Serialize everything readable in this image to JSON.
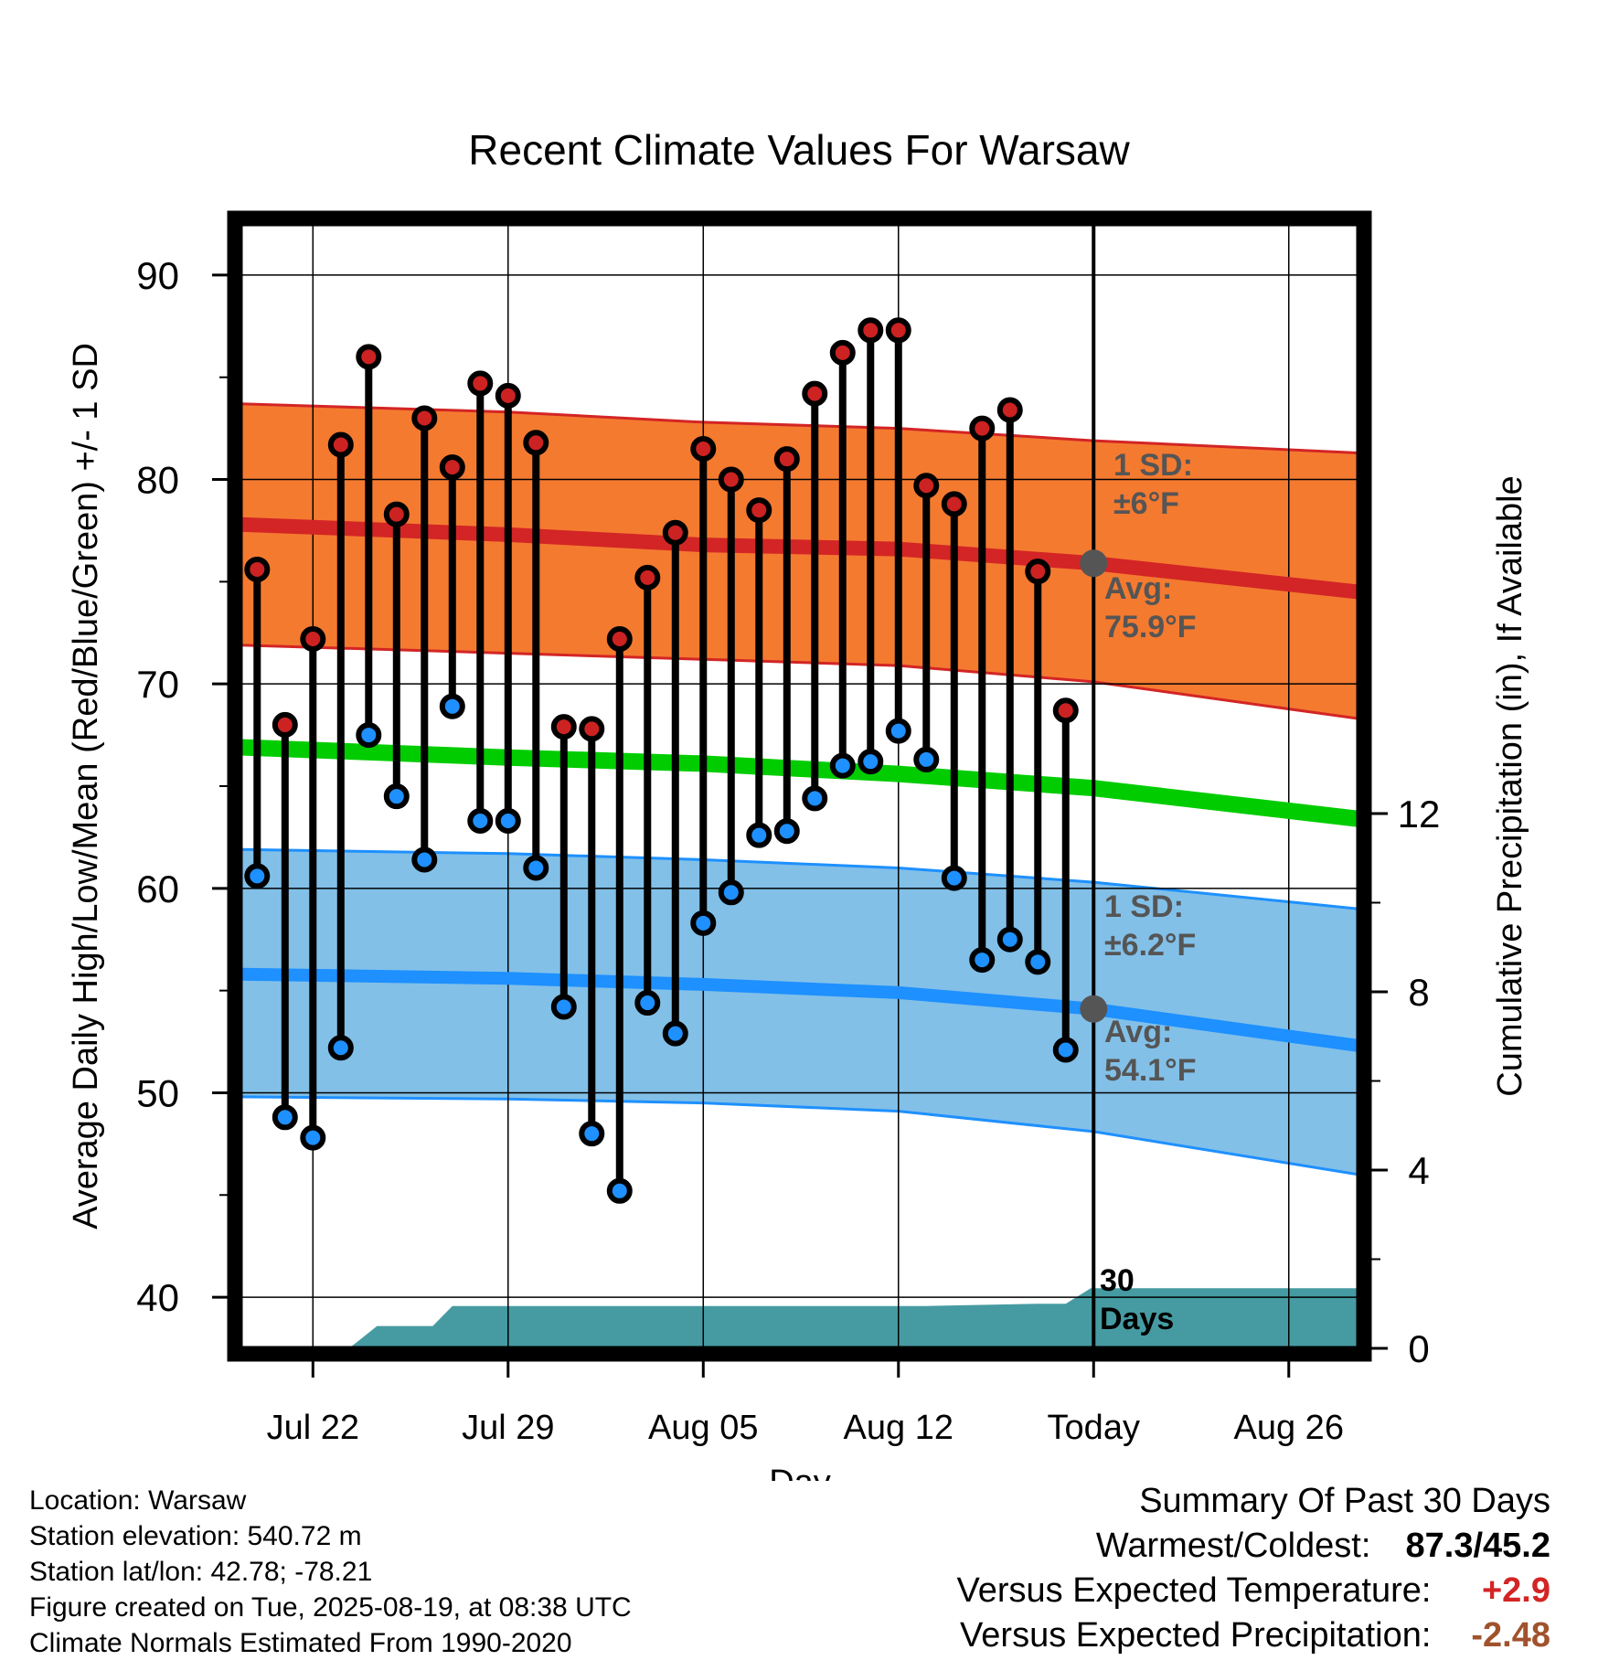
{
  "chart_data": {
    "type": "line",
    "title": "Recent Climate Values For Warsaw",
    "xlabel": "Day",
    "ylabel": "Average Daily High/Low/Mean (Red/Blue/Green) +/- 1 SD",
    "y2label": "Cumulative Precipitation (in), If Available",
    "ylim": [
      37.5,
      92.5
    ],
    "y2lim": [
      0,
      20
    ],
    "y_ticks": [
      "40",
      "50",
      "60",
      "70",
      "80",
      "90"
    ],
    "y2_ticks": [
      "0",
      "4",
      "8",
      "12"
    ],
    "y2_tick_values": [
      0,
      4,
      8,
      12
    ],
    "x_ticks": [
      "Jul 22",
      "Jul 29",
      "Aug 05",
      "Aug 12",
      "Today",
      "Aug 26"
    ],
    "x_tick_days": [
      0,
      7,
      14,
      21,
      28,
      35
    ],
    "xlim": [
      -2.6,
      37.5
    ],
    "grid": true,
    "days": [
      -2,
      -1,
      0,
      1,
      2,
      3,
      4,
      5,
      6,
      7,
      8,
      9,
      10,
      11,
      12,
      13,
      14,
      15,
      16,
      17,
      18,
      19,
      20,
      21,
      22,
      23,
      24,
      25,
      26,
      27
    ],
    "daily_high": [
      75.6,
      68.0,
      72.2,
      81.7,
      86.0,
      78.3,
      83.0,
      80.6,
      84.7,
      84.1,
      81.8,
      67.9,
      67.8,
      72.2,
      75.2,
      77.4,
      81.5,
      80.0,
      78.5,
      81.0,
      84.2,
      86.2,
      87.3,
      87.3,
      79.7,
      78.8,
      82.5,
      83.4,
      75.5,
      68.7
    ],
    "daily_low": [
      60.6,
      48.8,
      47.8,
      52.2,
      67.5,
      64.5,
      61.4,
      68.9,
      63.3,
      63.3,
      61.0,
      54.2,
      48.0,
      45.2,
      54.4,
      52.9,
      58.3,
      59.8,
      62.6,
      62.8,
      64.4,
      66.0,
      66.2,
      67.7,
      66.3,
      60.5,
      56.5,
      57.5,
      56.4,
      52.1
    ],
    "normal_days": [
      -2.6,
      7,
      14,
      21,
      28,
      37.5
    ],
    "normal_high": [
      77.8,
      77.3,
      76.8,
      76.6,
      75.9,
      74.5
    ],
    "normal_low": [
      55.8,
      55.6,
      55.3,
      54.9,
      54.1,
      52.3
    ],
    "normal_mean": [
      66.9,
      66.4,
      66.1,
      65.6,
      64.9,
      63.4
    ],
    "high_sd_upper": [
      83.7,
      83.3,
      82.8,
      82.5,
      81.9,
      81.3
    ],
    "high_sd_lower": [
      71.9,
      71.5,
      71.2,
      70.9,
      70.1,
      68.3
    ],
    "low_sd_upper": [
      61.9,
      61.7,
      61.4,
      61.0,
      60.3,
      59.0
    ],
    "low_sd_lower": [
      49.8,
      49.7,
      49.5,
      49.1,
      48.1,
      46.0
    ],
    "precip_days": [
      1.3,
      2.3,
      3.3,
      3.7,
      4.3,
      5.0,
      8.0,
      12.0,
      16.0,
      22.0,
      26.0,
      27.0,
      27.9,
      37.5
    ],
    "precip_cumulative": [
      0.0,
      0.5,
      0.5,
      0.5,
      0.5,
      0.95,
      0.95,
      0.95,
      0.95,
      0.95,
      1.0,
      1.0,
      1.35,
      1.35
    ],
    "annotations": {
      "high_sd_line1": "1 SD:",
      "high_sd_line2": "±6°F",
      "high_avg_line1": "Avg:",
      "high_avg_line2": "75.9°F",
      "low_sd_line1": "1 SD:",
      "low_sd_line2": "±6.2°F",
      "low_avg_line1": "Avg:",
      "low_avg_line2": "54.1°F",
      "period_line1": "30",
      "period_line2": "Days"
    },
    "colors": {
      "high_band": "#f47a30",
      "high_line": "#d32525",
      "low_band": "#82c0e8",
      "low_line": "#1e90ff",
      "mean_line": "#00cc00",
      "precip": "#469ba2",
      "high_marker": "#cc2222",
      "low_marker": "#1e90ff",
      "annotation_text": "#555555",
      "avg_marker": "#555555"
    }
  },
  "footer": {
    "location": "Location: Warsaw",
    "elevation": "Station elevation: 540.72 m",
    "latlon": "Station lat/lon: 42.78; -78.21",
    "created": "Figure created on Tue, 2025-08-19, at 08:38 UTC",
    "normals": "Climate Normals Estimated From 1990-2020"
  },
  "summary": {
    "title": "Summary Of Past 30 Days",
    "warmest_label": "Warmest/Coldest:",
    "warmest_value": "87.3/45.2",
    "temp_label": "Versus Expected Temperature:",
    "temp_value": "+2.9",
    "temp_color": "#d32525",
    "precip_label": "Versus Expected Precipitation:",
    "precip_value": "-2.48",
    "precip_color": "#a0522d"
  }
}
